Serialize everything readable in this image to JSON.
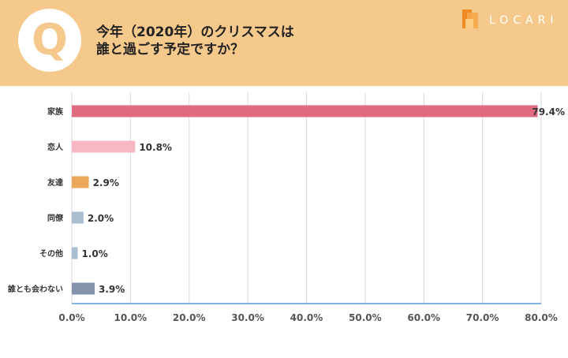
{
  "header": {
    "badge": "Q",
    "title_line1": "今年（2020年）のクリスマスは",
    "title_line2": "誰と過ごす予定ですか？",
    "brand": "LOCARI"
  },
  "colors": {
    "header_bg": "#f5c98b",
    "axis": "#5b9bd5",
    "grid": "#d9d9d9"
  },
  "chart_data": {
    "type": "bar",
    "orientation": "horizontal",
    "categories": [
      "家族",
      "恋人",
      "友達",
      "同僚",
      "その他",
      "誰とも会わない"
    ],
    "values": [
      79.4,
      10.8,
      2.9,
      2.0,
      1.0,
      3.9
    ],
    "value_labels": [
      "79.4%",
      "10.8%",
      "2.9%",
      "2.0%",
      "1.0%",
      "3.9%"
    ],
    "bar_colors": [
      "#e06b80",
      "#f7b8c3",
      "#eba85a",
      "#a9bed0",
      "#a9bed0",
      "#8593ac"
    ],
    "xlim": [
      0,
      80
    ],
    "x_ticks": [
      "0.0%",
      "10.0%",
      "20.0%",
      "30.0%",
      "40.0%",
      "50.0%",
      "60.0%",
      "70.0%",
      "80.0%"
    ],
    "grid": true,
    "title": "",
    "xlabel": "",
    "ylabel": ""
  }
}
